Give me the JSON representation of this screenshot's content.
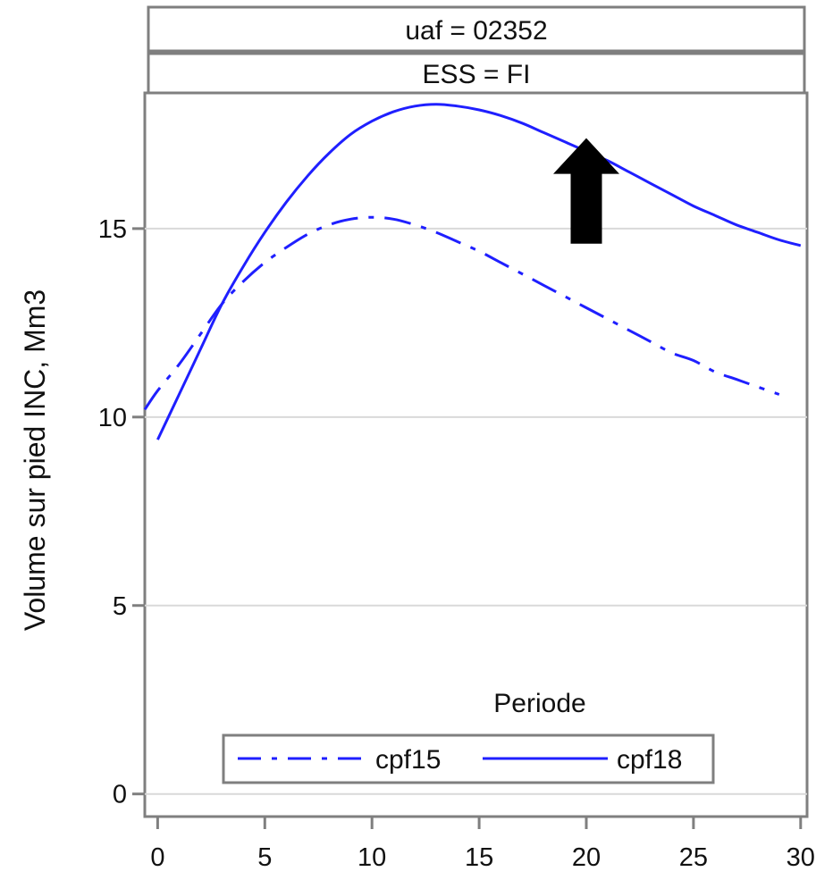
{
  "strips": {
    "top": "uaf = 02352",
    "bottom": "ESS = FI"
  },
  "colors": {
    "series": "#1f1fff",
    "grid": "#d9d9d9",
    "frame": "#7f7f7f",
    "arrow": "#000000"
  },
  "chart_data": {
    "type": "line",
    "xlabel": "",
    "ylabel": "Volume sur pied INC, Mm3",
    "xlim": [
      -0.6,
      30.3
    ],
    "ylim": [
      -0.6,
      18.6
    ],
    "x_ticks": [
      0,
      5,
      10,
      15,
      20,
      25,
      30
    ],
    "y_ticks": [
      0,
      5,
      10,
      15
    ],
    "grid": "horizontal",
    "legend": {
      "title": "Periode",
      "placement": "bottom-center",
      "entries": [
        "cpf15",
        "cpf18"
      ]
    },
    "series": [
      {
        "name": "cpf15",
        "style": "dash-dot",
        "x": [
          -0.6,
          0,
          1,
          2,
          3,
          4,
          5,
          6,
          7,
          8,
          9,
          10,
          11,
          12,
          13,
          14,
          15,
          16,
          17,
          18,
          19,
          20,
          21,
          22,
          23,
          24,
          25,
          26,
          27,
          28,
          29
        ],
        "y": [
          10.2,
          10.7,
          11.4,
          12.2,
          13.0,
          13.6,
          14.1,
          14.5,
          14.85,
          15.1,
          15.25,
          15.3,
          15.25,
          15.1,
          14.9,
          14.65,
          14.4,
          14.1,
          13.8,
          13.5,
          13.2,
          12.9,
          12.6,
          12.3,
          12.0,
          11.7,
          11.5,
          11.2,
          11.0,
          10.8,
          10.6
        ]
      },
      {
        "name": "cpf18",
        "style": "solid",
        "x": [
          0,
          1,
          2,
          3,
          4,
          5,
          6,
          7,
          8,
          9,
          10,
          11,
          12,
          13,
          14,
          15,
          16,
          17,
          18,
          19,
          20,
          21,
          22,
          23,
          24,
          25,
          26,
          27,
          28,
          29,
          30
        ],
        "y": [
          9.4,
          10.6,
          11.8,
          13.0,
          14.0,
          14.9,
          15.7,
          16.4,
          17.0,
          17.5,
          17.85,
          18.1,
          18.25,
          18.3,
          18.25,
          18.15,
          18.0,
          17.8,
          17.55,
          17.3,
          17.05,
          16.8,
          16.5,
          16.2,
          15.9,
          15.6,
          15.35,
          15.1,
          14.9,
          14.7,
          14.55
        ]
      }
    ],
    "annotations": [
      {
        "type": "arrow",
        "direction": "up",
        "x": 20,
        "y_start": 14.6,
        "y_end": 17.4
      }
    ]
  }
}
